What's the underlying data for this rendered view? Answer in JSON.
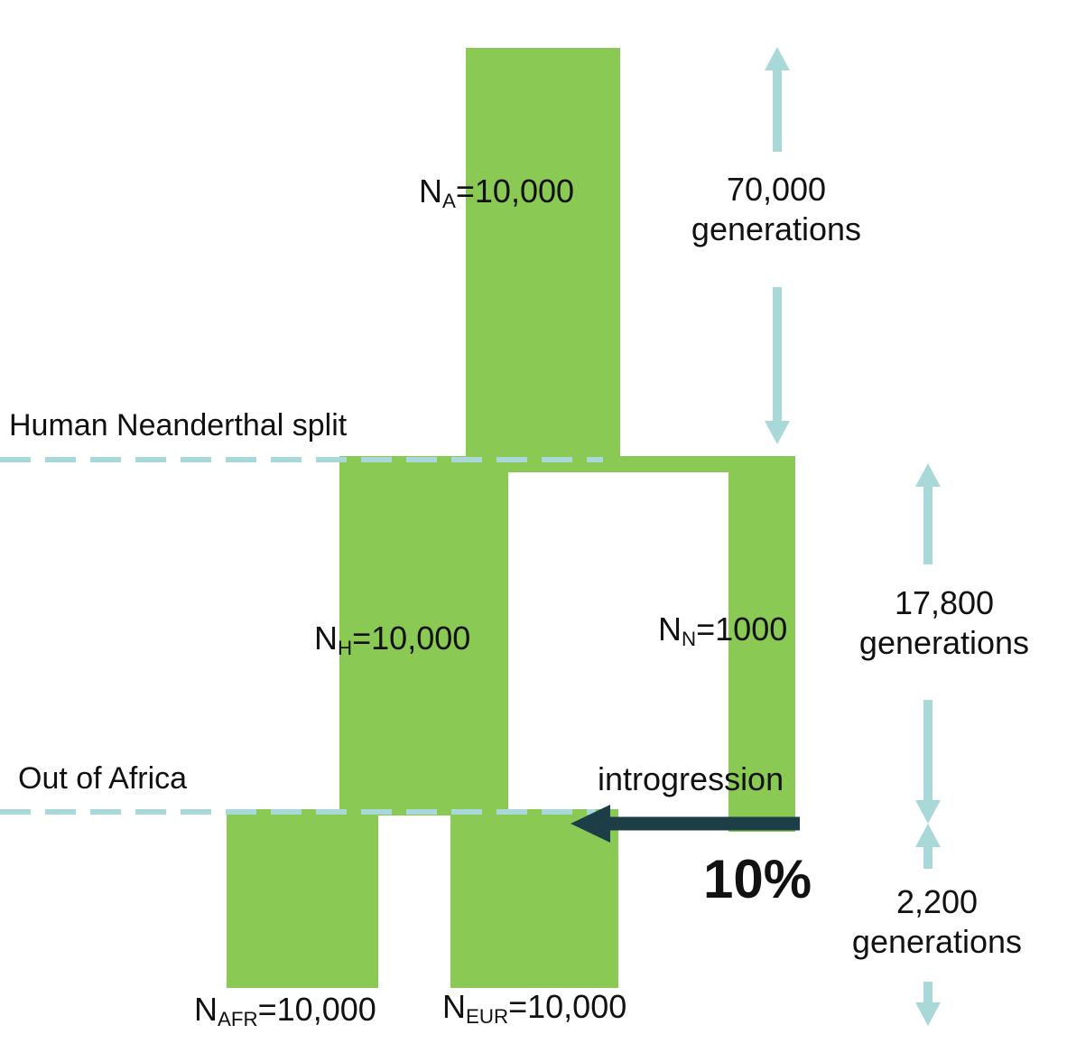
{
  "colors": {
    "population": "#8bc955",
    "dashed_line": "#a8d8d8",
    "generation_arrow": "#a8d8d8",
    "introgression_arrow": "#1d3e46",
    "text": "#111111"
  },
  "populations": {
    "ancestral": {
      "symbol": "N",
      "subscript": "A",
      "value": "=10,000"
    },
    "human": {
      "symbol": "N",
      "subscript": "H",
      "value": "=10,000"
    },
    "neanderthal": {
      "symbol": "N",
      "subscript": "N",
      "value": "=1000"
    },
    "african": {
      "symbol": "N",
      "subscript": "AFR",
      "value": "=10,000"
    },
    "european": {
      "symbol": "N",
      "subscript": "EUR",
      "value": "=10,000"
    }
  },
  "events": {
    "split_label": "Human Neanderthal split",
    "out_of_africa_label": "Out of Africa"
  },
  "durations": {
    "first": {
      "number": "70,000",
      "unit": "generations"
    },
    "second": {
      "number": "17,800",
      "unit": "generations"
    },
    "third": {
      "number": "2,200",
      "unit": "generations"
    }
  },
  "introgression": {
    "label": "introgression",
    "percent": "10%"
  }
}
